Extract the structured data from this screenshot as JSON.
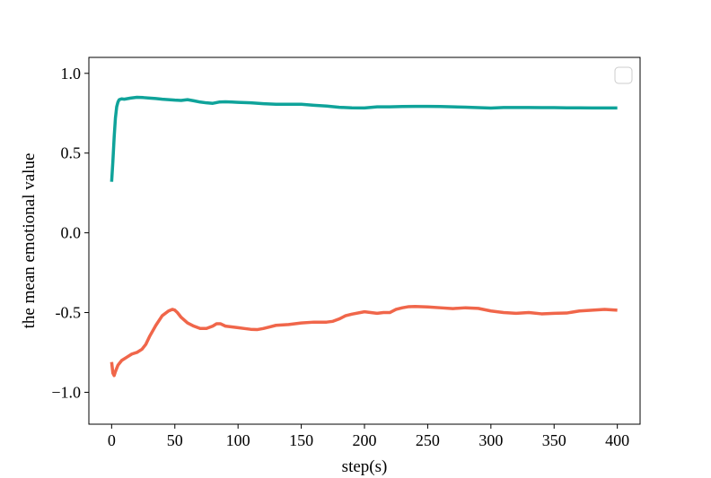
{
  "chart_data": {
    "type": "line",
    "title": "",
    "xlabel": "step(s)",
    "ylabel": "the mean emotional value",
    "xlim": [
      -18,
      418
    ],
    "ylim": [
      -1.2,
      1.1
    ],
    "xticks": [
      0,
      50,
      100,
      150,
      200,
      250,
      300,
      350,
      400
    ],
    "yticks": [
      -1.0,
      -0.5,
      0.0,
      0.5,
      1.0
    ],
    "yticklabels": [
      "−1.0",
      "-0.5",
      "0.0",
      "0.5",
      "1.0"
    ],
    "grid": false,
    "legend": {
      "placement": "top-right",
      "entries": []
    },
    "series": [
      {
        "color": "#0fa39a",
        "points": [
          [
            0,
            0.32
          ],
          [
            1,
            0.45
          ],
          [
            2,
            0.6
          ],
          [
            3,
            0.72
          ],
          [
            4,
            0.79
          ],
          [
            5,
            0.82
          ],
          [
            6,
            0.835
          ],
          [
            8,
            0.84
          ],
          [
            10,
            0.838
          ],
          [
            15,
            0.845
          ],
          [
            20,
            0.85
          ],
          [
            25,
            0.848
          ],
          [
            30,
            0.845
          ],
          [
            35,
            0.842
          ],
          [
            40,
            0.838
          ],
          [
            45,
            0.835
          ],
          [
            50,
            0.832
          ],
          [
            55,
            0.83
          ],
          [
            60,
            0.835
          ],
          [
            65,
            0.828
          ],
          [
            70,
            0.82
          ],
          [
            75,
            0.815
          ],
          [
            80,
            0.812
          ],
          [
            85,
            0.82
          ],
          [
            90,
            0.822
          ],
          [
            95,
            0.82
          ],
          [
            100,
            0.818
          ],
          [
            110,
            0.815
          ],
          [
            120,
            0.81
          ],
          [
            130,
            0.806
          ],
          [
            140,
            0.806
          ],
          [
            150,
            0.806
          ],
          [
            160,
            0.8
          ],
          [
            170,
            0.795
          ],
          [
            180,
            0.787
          ],
          [
            190,
            0.784
          ],
          [
            200,
            0.783
          ],
          [
            210,
            0.79
          ],
          [
            220,
            0.79
          ],
          [
            230,
            0.792
          ],
          [
            240,
            0.793
          ],
          [
            250,
            0.793
          ],
          [
            260,
            0.792
          ],
          [
            270,
            0.79
          ],
          [
            280,
            0.788
          ],
          [
            290,
            0.785
          ],
          [
            300,
            0.782
          ],
          [
            310,
            0.786
          ],
          [
            320,
            0.786
          ],
          [
            330,
            0.786
          ],
          [
            340,
            0.785
          ],
          [
            350,
            0.785
          ],
          [
            360,
            0.784
          ],
          [
            370,
            0.784
          ],
          [
            380,
            0.783
          ],
          [
            390,
            0.783
          ],
          [
            400,
            0.783
          ]
        ]
      },
      {
        "color": "#f0664a",
        "points": [
          [
            0,
            -0.81
          ],
          [
            1,
            -0.88
          ],
          [
            2,
            -0.895
          ],
          [
            3,
            -0.87
          ],
          [
            5,
            -0.83
          ],
          [
            8,
            -0.8
          ],
          [
            12,
            -0.78
          ],
          [
            16,
            -0.76
          ],
          [
            20,
            -0.75
          ],
          [
            24,
            -0.73
          ],
          [
            27,
            -0.7
          ],
          [
            30,
            -0.65
          ],
          [
            35,
            -0.58
          ],
          [
            40,
            -0.52
          ],
          [
            45,
            -0.49
          ],
          [
            48,
            -0.48
          ],
          [
            50,
            -0.485
          ],
          [
            52,
            -0.5
          ],
          [
            55,
            -0.53
          ],
          [
            60,
            -0.565
          ],
          [
            65,
            -0.585
          ],
          [
            70,
            -0.6
          ],
          [
            75,
            -0.6
          ],
          [
            80,
            -0.585
          ],
          [
            83,
            -0.57
          ],
          [
            86,
            -0.57
          ],
          [
            90,
            -0.585
          ],
          [
            95,
            -0.59
          ],
          [
            100,
            -0.595
          ],
          [
            105,
            -0.6
          ],
          [
            110,
            -0.605
          ],
          [
            115,
            -0.607
          ],
          [
            120,
            -0.6
          ],
          [
            125,
            -0.59
          ],
          [
            130,
            -0.58
          ],
          [
            140,
            -0.575
          ],
          [
            150,
            -0.565
          ],
          [
            160,
            -0.56
          ],
          [
            170,
            -0.56
          ],
          [
            175,
            -0.555
          ],
          [
            180,
            -0.54
          ],
          [
            185,
            -0.52
          ],
          [
            190,
            -0.51
          ],
          [
            200,
            -0.495
          ],
          [
            205,
            -0.5
          ],
          [
            210,
            -0.505
          ],
          [
            215,
            -0.5
          ],
          [
            220,
            -0.5
          ],
          [
            225,
            -0.48
          ],
          [
            230,
            -0.47
          ],
          [
            235,
            -0.463
          ],
          [
            240,
            -0.462
          ],
          [
            250,
            -0.465
          ],
          [
            260,
            -0.47
          ],
          [
            270,
            -0.475
          ],
          [
            280,
            -0.47
          ],
          [
            290,
            -0.474
          ],
          [
            300,
            -0.49
          ],
          [
            310,
            -0.5
          ],
          [
            320,
            -0.505
          ],
          [
            330,
            -0.5
          ],
          [
            340,
            -0.508
          ],
          [
            350,
            -0.505
          ],
          [
            360,
            -0.503
          ],
          [
            370,
            -0.49
          ],
          [
            380,
            -0.485
          ],
          [
            390,
            -0.48
          ],
          [
            400,
            -0.485
          ]
        ]
      }
    ]
  }
}
